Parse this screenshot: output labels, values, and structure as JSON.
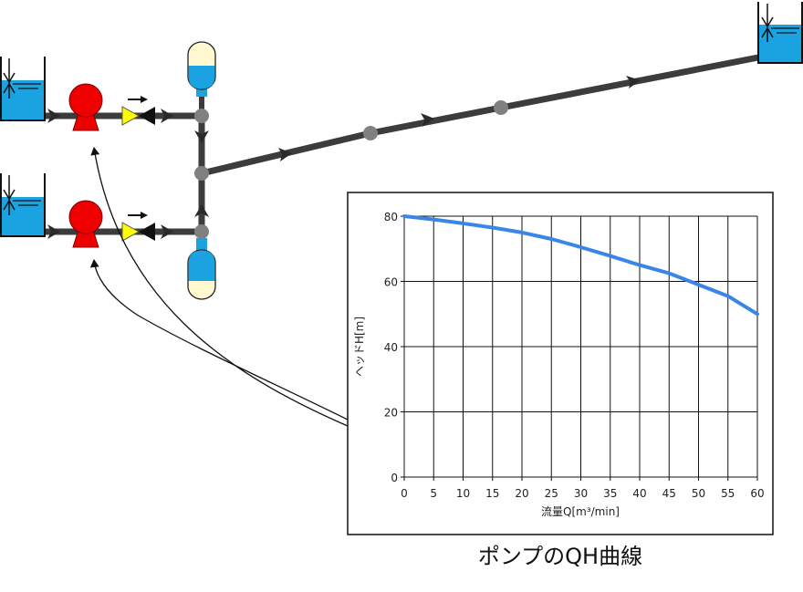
{
  "colors": {
    "pipe": "#3c3c3c",
    "water": "#1aa3e0",
    "pump": "#ee0000",
    "valve": "#ffff00",
    "cream": "#fff8d0",
    "node": "#808080",
    "curve": "#3a86e8"
  },
  "icons": [
    "tank-icon",
    "pump-icon",
    "check-valve-icon",
    "accumulator-icon",
    "flow-arrow-icon"
  ],
  "caption": "ポンプのQH曲線",
  "chart_data": {
    "type": "line",
    "xlabel": "流量Q[m³/min]",
    "ylabel": "ヘッドH[m]",
    "xlim": [
      0,
      60
    ],
    "ylim": [
      0,
      80
    ],
    "x_ticks": [
      0,
      5,
      10,
      15,
      20,
      25,
      30,
      35,
      40,
      45,
      50,
      55,
      60
    ],
    "y_ticks": [
      0,
      20,
      40,
      60,
      80
    ],
    "grid": true,
    "series": [
      {
        "x": [
          0,
          5,
          10,
          15,
          20,
          25,
          30,
          35,
          40,
          45,
          50,
          55,
          60
        ],
        "y": [
          80,
          79,
          77.8,
          76.5,
          75,
          73,
          70.5,
          67.8,
          65,
          62.5,
          59,
          55.5,
          50
        ]
      }
    ]
  }
}
